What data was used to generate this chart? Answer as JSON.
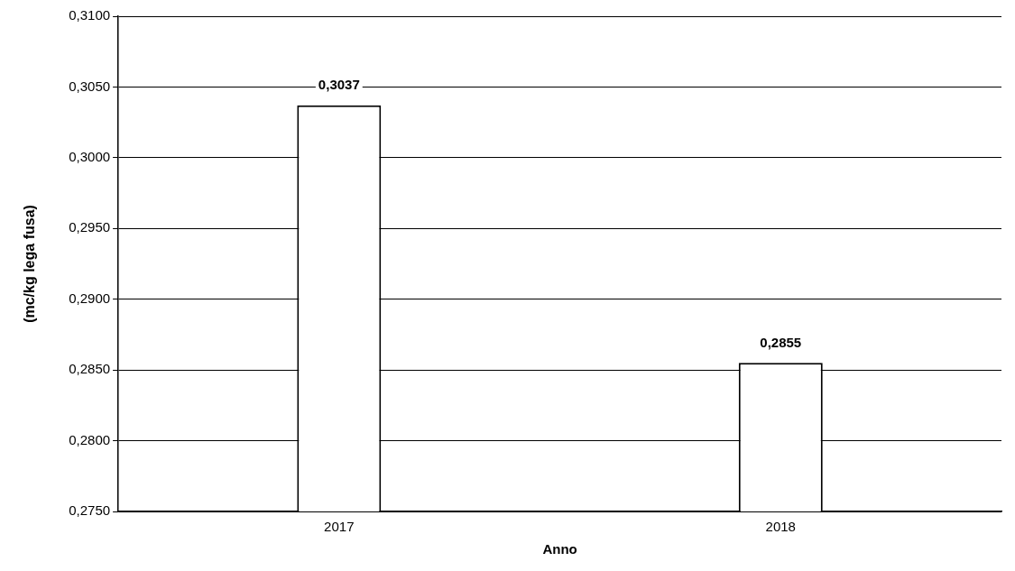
{
  "chart_data": {
    "type": "bar",
    "xlabel": "Anno",
    "ylabel": "(mc/kg lega fusa)",
    "categories": [
      "2017",
      "2018"
    ],
    "values": [
      0.3037,
      0.2855
    ],
    "value_labels": [
      "0,3037",
      "0,2855"
    ],
    "color": "#ffffff",
    "ylim": [
      0.275,
      0.31
    ],
    "yticks": [
      {
        "value": 0.275,
        "label": "0,2750"
      },
      {
        "value": 0.28,
        "label": "0,2800"
      },
      {
        "value": 0.285,
        "label": "0,2850"
      },
      {
        "value": 0.29,
        "label": "0,2900"
      },
      {
        "value": 0.295,
        "label": "0,2950"
      },
      {
        "value": 0.3,
        "label": "0,3000"
      },
      {
        "value": 0.305,
        "label": "0,3050"
      },
      {
        "value": 0.31,
        "label": "0,3100"
      }
    ],
    "grid": "y",
    "legend": false
  }
}
